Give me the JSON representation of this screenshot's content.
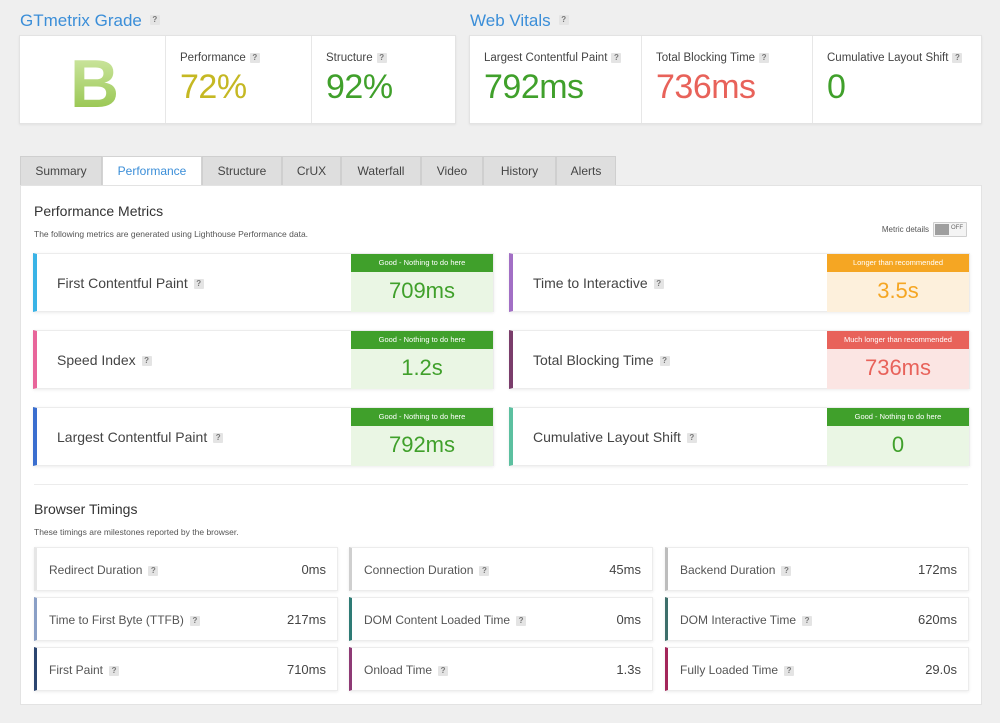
{
  "grade_section": {
    "title": "GTmetrix Grade",
    "help": "?",
    "grade": "B",
    "performance": {
      "label": "Performance",
      "value": "72%"
    },
    "structure": {
      "label": "Structure",
      "value": "92%"
    }
  },
  "web_vitals": {
    "title": "Web Vitals",
    "help": "?",
    "items": [
      {
        "label": "Largest Contentful Paint",
        "value": "792ms"
      },
      {
        "label": "Total Blocking Time",
        "value": "736ms"
      },
      {
        "label": "Cumulative Layout Shift",
        "value": "0"
      }
    ]
  },
  "tabs": [
    "Summary",
    "Performance",
    "Structure",
    "CrUX",
    "Waterfall",
    "Video",
    "History",
    "Alerts"
  ],
  "active_tab": "Performance",
  "performance_metrics": {
    "title": "Performance Metrics",
    "subtitle": "The following metrics are generated using Lighthouse Performance data.",
    "toggle_label": "Metric details",
    "toggle_state": "OFF",
    "metrics": [
      {
        "name": "First Contentful Paint",
        "badge": "Good - Nothing to do here",
        "value": "709ms"
      },
      {
        "name": "Time to Interactive",
        "badge": "Longer than recommended",
        "value": "3.5s"
      },
      {
        "name": "Speed Index",
        "badge": "Good - Nothing to do here",
        "value": "1.2s"
      },
      {
        "name": "Total Blocking Time",
        "badge": "Much longer than recommended",
        "value": "736ms"
      },
      {
        "name": "Largest Contentful Paint",
        "badge": "Good - Nothing to do here",
        "value": "792ms"
      },
      {
        "name": "Cumulative Layout Shift",
        "badge": "Good - Nothing to do here",
        "value": "0"
      }
    ]
  },
  "browser_timings": {
    "title": "Browser Timings",
    "subtitle": "These timings are milestones reported by the browser.",
    "items": [
      {
        "name": "Redirect Duration",
        "value": "0ms"
      },
      {
        "name": "Connection Duration",
        "value": "45ms"
      },
      {
        "name": "Backend Duration",
        "value": "172ms"
      },
      {
        "name": "Time to First Byte (TTFB)",
        "value": "217ms"
      },
      {
        "name": "DOM Content Loaded Time",
        "value": "0ms"
      },
      {
        "name": "DOM Interactive Time",
        "value": "620ms"
      },
      {
        "name": "First Paint",
        "value": "710ms"
      },
      {
        "name": "Onload Time",
        "value": "1.3s"
      },
      {
        "name": "Fully Loaded Time",
        "value": "29.0s"
      }
    ]
  },
  "colors": {
    "accent_blue": "#3b8ed8",
    "good_green": "#40a02b",
    "warn_orange": "#f5a623",
    "bad_red": "#e8625a",
    "grade_b": "#8cbf3f",
    "perf_yellow": "#c5b823"
  }
}
